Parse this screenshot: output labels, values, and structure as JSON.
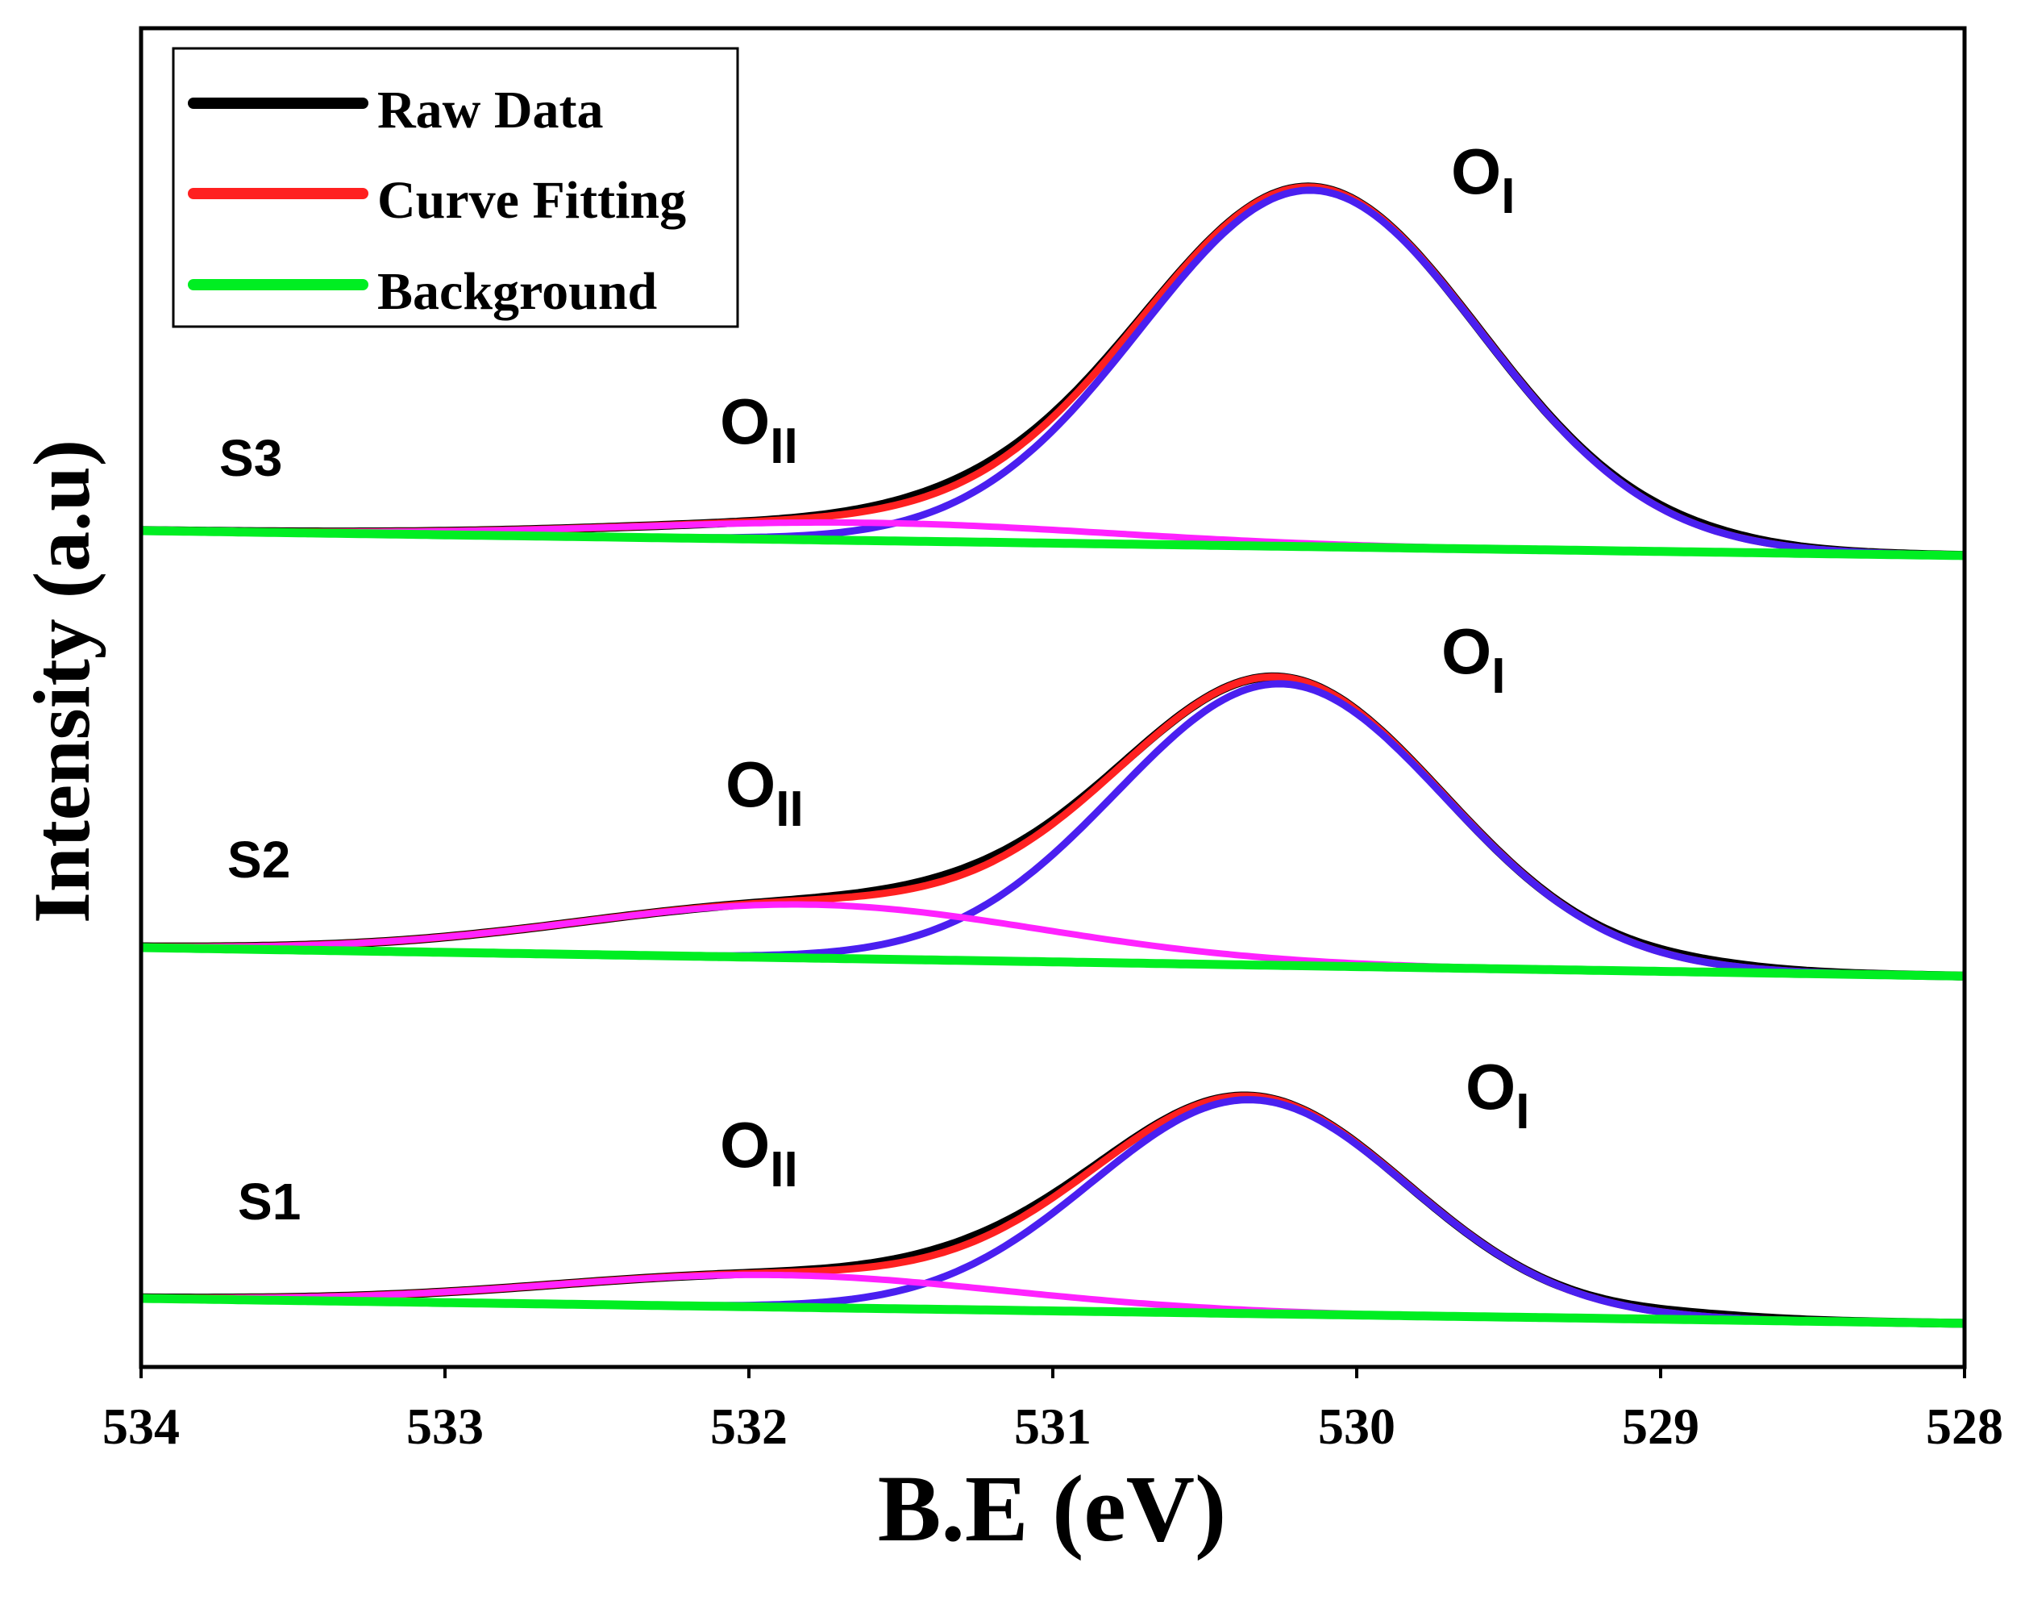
{
  "chart_data": {
    "type": "line",
    "title": "",
    "xlabel": "B.E (eV)",
    "ylabel": "Intensity (a.u)",
    "xlim": [
      534,
      528
    ],
    "x_reversed": true,
    "x_ticks": [
      "534",
      "533",
      "532",
      "531",
      "530",
      "529",
      "528"
    ],
    "y_ticks": [],
    "colors": {
      "raw": "#000000",
      "fit": "#ff2020",
      "background": "#00ee22",
      "peak_OI": "#4a1ff0",
      "peak_OII": "#ff22ff",
      "axis": "#000000"
    },
    "legend": {
      "placement": "top-left",
      "entries": [
        {
          "label": "Raw Data",
          "color": "#000000"
        },
        {
          "label": "Curve Fitting",
          "color": "#ff2020"
        },
        {
          "label": "Background",
          "color": "#00ee22"
        }
      ]
    },
    "panels": [
      {
        "sample": "S3",
        "baseline_left": 0.0,
        "baseline_right": -0.07,
        "peaks": [
          {
            "name": "OI",
            "center": 530.15,
            "amplitude": 1.0,
            "sigma": 0.56
          },
          {
            "name": "OII",
            "center": 531.6,
            "amplitude": 0.05,
            "sigma": 0.78
          }
        ]
      },
      {
        "sample": "S2",
        "baseline_left": 0.0,
        "baseline_right": -0.08,
        "peaks": [
          {
            "name": "OI",
            "center": 530.25,
            "amplitude": 0.79,
            "sigma": 0.54
          },
          {
            "name": "OII",
            "center": 531.8,
            "amplitude": 0.15,
            "sigma": 0.76
          }
        ]
      },
      {
        "sample": "S1",
        "baseline_left": 0.0,
        "baseline_right": -0.07,
        "peaks": [
          {
            "name": "OI",
            "center": 530.35,
            "amplitude": 0.6,
            "sigma": 0.52
          },
          {
            "name": "OII",
            "center": 531.9,
            "amplitude": 0.09,
            "sigma": 0.74
          }
        ]
      }
    ],
    "annotations": {
      "peak_labels": [
        {
          "panel": "S3",
          "main": "O",
          "sub": "I"
        },
        {
          "panel": "S3",
          "main": "O",
          "sub": "II"
        },
        {
          "panel": "S2",
          "main": "O",
          "sub": "I"
        },
        {
          "panel": "S2",
          "main": "O",
          "sub": "II"
        },
        {
          "panel": "S1",
          "main": "O",
          "sub": "I"
        },
        {
          "panel": "S1",
          "main": "O",
          "sub": "II"
        }
      ]
    }
  }
}
